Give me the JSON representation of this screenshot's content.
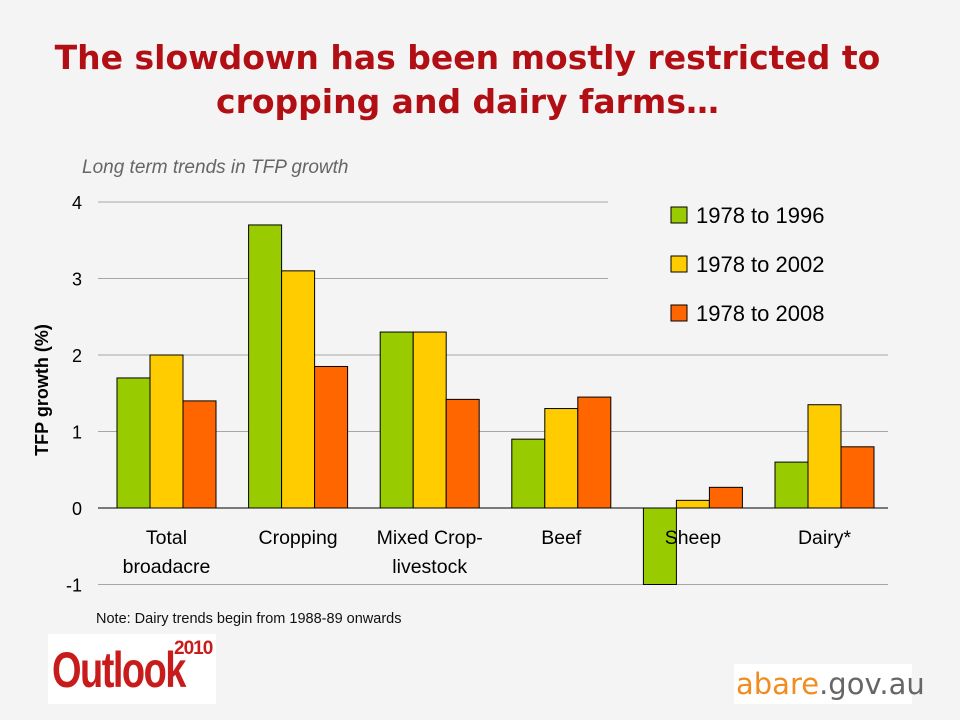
{
  "title": "The slowdown has been mostly restricted to cropping and dairy farms…",
  "subtitle": "Long term trends in TFP growth",
  "note": "Note: Dairy trends begin from 1988-89 onwards",
  "logos": {
    "outlook_word": "Outlook",
    "outlook_year": "2010",
    "abare_part1": "abare",
    "abare_part2": ".gov.au"
  },
  "colors": {
    "title": "#b10f14",
    "series": [
      "#99cc00",
      "#ffcc00",
      "#ff6600"
    ]
  },
  "chart_data": {
    "type": "bar",
    "ylabel": "TFP growth (%)",
    "ylim": [
      -1,
      4
    ],
    "yticks": [
      -1,
      0,
      1,
      2,
      3,
      4
    ],
    "grid": true,
    "legend_position": "top-right",
    "categories": [
      [
        "Total",
        "broadacre"
      ],
      [
        "Cropping"
      ],
      [
        "Mixed Crop-",
        "livestock"
      ],
      [
        "Beef"
      ],
      [
        "Sheep"
      ],
      [
        "Dairy*"
      ]
    ],
    "series": [
      {
        "name": "1978 to 1996",
        "values": [
          1.7,
          3.7,
          2.3,
          0.9,
          -1.0,
          0.6
        ]
      },
      {
        "name": "1978 to 2002",
        "values": [
          2.0,
          3.1,
          2.3,
          1.3,
          0.1,
          1.35
        ]
      },
      {
        "name": "1978 to 2008",
        "values": [
          1.4,
          1.85,
          1.42,
          1.45,
          0.27,
          0.8
        ]
      }
    ]
  }
}
